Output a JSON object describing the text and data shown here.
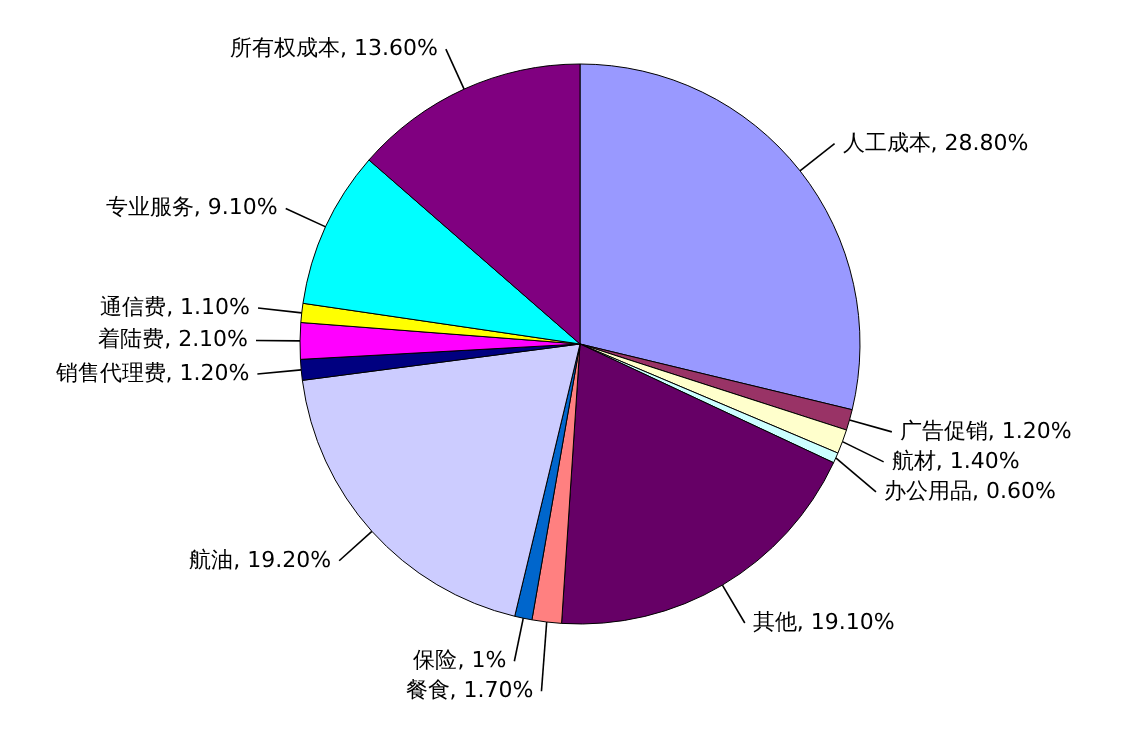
{
  "chart_data": {
    "type": "pie",
    "categories": [
      "人工成本",
      "广告促销",
      "航材",
      "办公用品",
      "其他",
      "餐食",
      "保险",
      "航油",
      "销售代理费",
      "着陆费",
      "通信费",
      "专业服务",
      "所有权成本"
    ],
    "values": [
      28.8,
      1.2,
      1.4,
      0.6,
      19.1,
      1.7,
      1,
      19.2,
      1.2,
      2.1,
      1.1,
      9.1,
      13.6
    ],
    "value_labels": [
      "28.80%",
      "1.20%",
      "1.40%",
      "0.60%",
      "19.10%",
      "1.70%",
      "1%",
      "19.20%",
      "1.20%",
      "2.10%",
      "1.10%",
      "9.10%",
      "13.60%"
    ],
    "colors": [
      "#9999ff",
      "#993366",
      "#ffffcc",
      "#ccffff",
      "#660066",
      "#ff8080",
      "#0066cc",
      "#ccccff",
      "#000080",
      "#ff00ff",
      "#ffff00",
      "#00ffff",
      "#800080"
    ],
    "legend": false
  }
}
